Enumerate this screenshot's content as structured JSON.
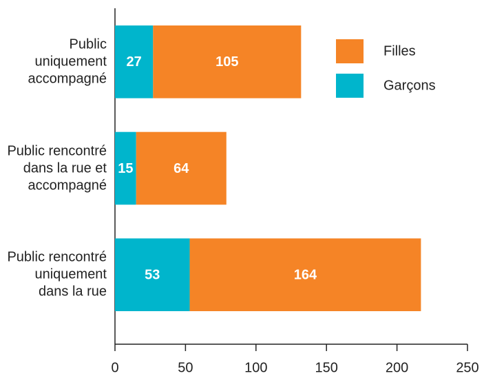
{
  "chart_data": {
    "type": "bar",
    "orientation": "horizontal",
    "stacked": true,
    "categories": [
      "Public uniquement accompagné",
      "Public rencontré dans la rue et accompagné",
      "Public rencontré uniquement dans la rue"
    ],
    "series": [
      {
        "name": "Garçons",
        "color": "#00b5cc",
        "values": [
          27,
          15,
          53
        ]
      },
      {
        "name": "Filles",
        "color": "#f58426",
        "values": [
          105,
          64,
          164
        ]
      }
    ],
    "xlim": [
      0,
      250
    ],
    "xticks": [
      0,
      50,
      100,
      150,
      200,
      250
    ],
    "legend": "upper right"
  }
}
